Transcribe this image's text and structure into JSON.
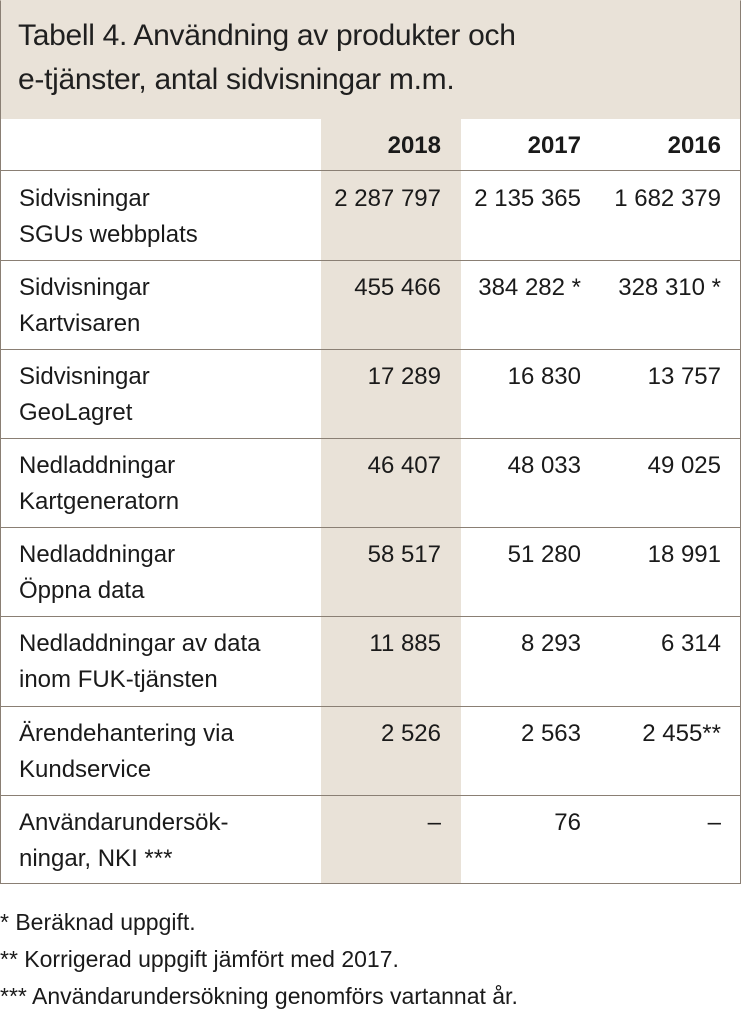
{
  "title_line1": "Tabell 4. Användning av produkter och",
  "title_line2": "e-tjänster, antal sidvisningar m.m.",
  "columns": [
    "2018",
    "2017",
    "2016"
  ],
  "rows": [
    {
      "label1": "Sidvisningar",
      "label2": "SGUs webbplats",
      "v2018": "2 287 797",
      "v2017": "2 135 365",
      "v2016": "1 682 379"
    },
    {
      "label1": "Sidvisningar",
      "label2": "Kartvisaren",
      "v2018": "455 466",
      "v2017": "384 282 *",
      "v2016": "328 310 *"
    },
    {
      "label1": "Sidvisningar",
      "label2": "GeoLagret",
      "v2018": "17 289",
      "v2017": "16 830",
      "v2016": "13 757"
    },
    {
      "label1": "Nedladdningar",
      "label2": "Kartgeneratorn",
      "v2018": "46 407",
      "v2017": "48 033",
      "v2016": "49 025"
    },
    {
      "label1": "Nedladdningar",
      "label2": "Öppna data",
      "v2018": "58 517",
      "v2017": "51 280",
      "v2016": "18 991"
    },
    {
      "label1": "Nedladdningar av data",
      "label2": "inom FUK-tjänsten",
      "v2018": "11 885",
      "v2017": "8 293",
      "v2016": "6 314"
    },
    {
      "label1": "Ärendehantering via",
      "label2": "Kundservice",
      "v2018": "2 526",
      "v2017": "2 563",
      "v2016": "2 455**"
    },
    {
      "label1": "Användarundersök-",
      "label2": "ningar, NKI ***",
      "v2018": "–",
      "v2017": "76",
      "v2016": "–"
    }
  ],
  "footnotes": [
    "* Beräknad uppgift.",
    "** Korrigerad uppgift jämfört med 2017.",
    "*** Användarundersökning genomförs vartannat år."
  ]
}
